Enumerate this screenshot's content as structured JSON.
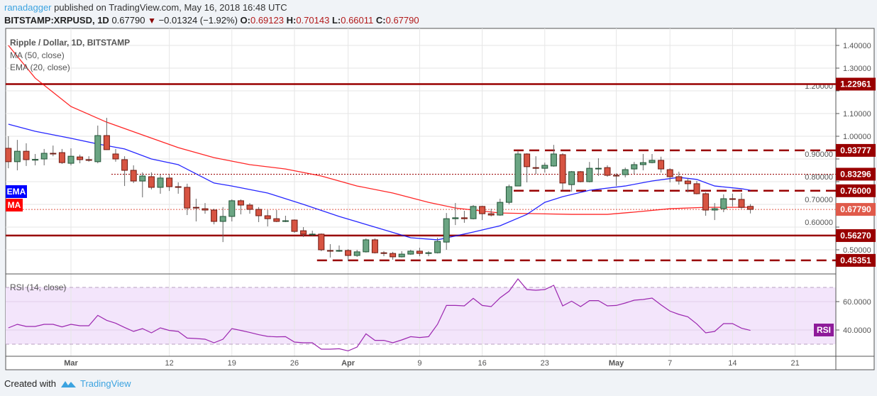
{
  "header": {
    "author": "ranadagger",
    "published_text": "published on TradingView.com, May 16, 2018 16:48 UTC",
    "symbol": "BITSTAMP:XRPUSD, 1D",
    "last": "0.67790",
    "change": "−0.01324 (−1.92%)",
    "direction_icon": "triangle-down-icon",
    "o_label": "O:",
    "o": "0.69123",
    "h_label": "H:",
    "h": "0.70143",
    "l_label": "L:",
    "l": "0.66011",
    "c_label": "C:",
    "c": "0.67790"
  },
  "legend": {
    "title": "Ripple / Dollar, 1D, BITSTAMP",
    "ma": "MA (50, close)",
    "ema": "EMA (20, close)",
    "ema_tag": "EMA",
    "ma_tag": "MA",
    "rsi": "RSI (14, close)",
    "rsi_tag": "RSI"
  },
  "footer": {
    "created_with": "Created with",
    "brand": "TradingView"
  },
  "colors": {
    "up": "#6ba583",
    "up_border": "#225437",
    "down": "#d75442",
    "down_border": "#6f1a12",
    "ma": "#ff0000",
    "ema": "#0000ff",
    "rsi": "#9c27b0",
    "level": "#990000",
    "last_price": "#e05a4a"
  },
  "chart_data": [
    {
      "type": "candlestick",
      "title": "Ripple / Dollar, 1D, BITSTAMP",
      "ylim": [
        0.4,
        1.45
      ],
      "y_ticks": [
        "1.40000",
        "1.30000",
        "1.20000",
        "1.10000",
        "1.00000",
        "0.90000",
        "0.80000",
        "0.70000",
        "0.60000",
        "0.50000"
      ],
      "x_ticks": [
        [
          "2018-03-01",
          "Mar"
        ],
        [
          "2018-03-12",
          "12"
        ],
        [
          "2018-03-19",
          "19"
        ],
        [
          "2018-03-26",
          "26"
        ],
        [
          "2018-04-01",
          "Apr"
        ],
        [
          "2018-04-09",
          "9"
        ],
        [
          "2018-04-16",
          "16"
        ],
        [
          "2018-04-23",
          "23"
        ],
        [
          "2018-05-01",
          "May"
        ],
        [
          "2018-05-07",
          "7"
        ],
        [
          "2018-05-14",
          "14"
        ],
        [
          "2018-05-21",
          "21"
        ]
      ],
      "grid": true,
      "levels": [
        {
          "value": 1.22961,
          "label": "1.22961",
          "style": "solid",
          "from": "2018-02-22"
        },
        {
          "value": 0.93777,
          "label": "0.93777",
          "style": "dashed",
          "from": "2018-04-20"
        },
        {
          "value": 0.83296,
          "label": "0.83296",
          "style": "dotted",
          "from": "2018-03-06"
        },
        {
          "value": 0.76,
          "label": "0.76000",
          "style": "dashed",
          "from": "2018-04-20"
        },
        {
          "value": 0.5627,
          "label": "0.56270",
          "style": "solid",
          "from": "2018-02-22"
        },
        {
          "value": 0.45351,
          "label": "0.45351",
          "style": "dashed",
          "from": "2018-03-29"
        }
      ],
      "last_price": {
        "value": 0.6779,
        "label": "0.67790"
      },
      "candles_columns": [
        "date",
        "open",
        "high",
        "low",
        "close"
      ],
      "candles": [
        [
          "2018-02-22",
          0.947,
          1.0,
          0.859,
          0.888
        ],
        [
          "2018-02-23",
          0.888,
          0.984,
          0.85,
          0.934
        ],
        [
          "2018-02-24",
          0.934,
          0.969,
          0.869,
          0.897
        ],
        [
          "2018-02-25",
          0.895,
          0.922,
          0.872,
          0.898
        ],
        [
          "2018-02-26",
          0.9,
          0.944,
          0.872,
          0.925
        ],
        [
          "2018-02-27",
          0.925,
          0.959,
          0.912,
          0.922
        ],
        [
          "2018-02-28",
          0.928,
          0.944,
          0.878,
          0.884
        ],
        [
          "2018-03-01",
          0.881,
          0.947,
          0.872,
          0.912
        ],
        [
          "2018-03-02",
          0.909,
          0.919,
          0.881,
          0.897
        ],
        [
          "2018-03-03",
          0.897,
          0.912,
          0.888,
          0.894
        ],
        [
          "2018-03-04",
          0.888,
          1.047,
          0.881,
          1.003
        ],
        [
          "2018-03-05",
          1.003,
          1.081,
          0.94,
          0.941
        ],
        [
          "2018-03-06",
          0.922,
          0.944,
          0.888,
          0.9
        ],
        [
          "2018-03-07",
          0.897,
          0.912,
          0.781,
          0.85
        ],
        [
          "2018-03-08",
          0.85,
          0.872,
          0.794,
          0.803
        ],
        [
          "2018-03-09",
          0.803,
          0.841,
          0.731,
          0.825
        ],
        [
          "2018-03-10",
          0.822,
          0.841,
          0.766,
          0.775
        ],
        [
          "2018-03-11",
          0.775,
          0.831,
          0.747,
          0.816
        ],
        [
          "2018-03-12",
          0.816,
          0.831,
          0.759,
          0.778
        ],
        [
          "2018-03-13",
          0.778,
          0.797,
          0.747,
          0.775
        ],
        [
          "2018-03-14",
          0.775,
          0.791,
          0.653,
          0.684
        ],
        [
          "2018-03-15",
          0.687,
          0.725,
          0.625,
          0.684
        ],
        [
          "2018-03-16",
          0.681,
          0.706,
          0.659,
          0.675
        ],
        [
          "2018-03-17",
          0.675,
          0.681,
          0.612,
          0.625
        ],
        [
          "2018-03-18",
          0.625,
          0.688,
          0.534,
          0.647
        ],
        [
          "2018-03-19",
          0.647,
          0.722,
          0.625,
          0.716
        ],
        [
          "2018-03-20",
          0.716,
          0.722,
          0.656,
          0.697
        ],
        [
          "2018-03-21",
          0.697,
          0.706,
          0.659,
          0.678
        ],
        [
          "2018-03-22",
          0.678,
          0.688,
          0.622,
          0.65
        ],
        [
          "2018-03-23",
          0.65,
          0.675,
          0.603,
          0.637
        ],
        [
          "2018-03-24",
          0.637,
          0.675,
          0.622,
          0.625
        ],
        [
          "2018-03-25",
          0.625,
          0.65,
          0.622,
          0.628
        ],
        [
          "2018-03-26",
          0.631,
          0.634,
          0.575,
          0.581
        ],
        [
          "2018-03-27",
          0.584,
          0.6,
          0.556,
          0.569
        ],
        [
          "2018-03-28",
          0.566,
          0.584,
          0.562,
          0.569
        ],
        [
          "2018-03-29",
          0.569,
          0.572,
          0.494,
          0.5
        ],
        [
          "2018-03-30",
          0.497,
          0.525,
          0.466,
          0.494
        ],
        [
          "2018-03-31",
          0.494,
          0.519,
          0.491,
          0.497
        ],
        [
          "2018-04-01",
          0.497,
          0.503,
          0.45,
          0.475
        ],
        [
          "2018-04-02",
          0.475,
          0.5,
          0.469,
          0.491
        ],
        [
          "2018-04-03",
          0.491,
          0.55,
          0.488,
          0.544
        ],
        [
          "2018-04-04",
          0.544,
          0.55,
          0.484,
          0.487
        ],
        [
          "2018-04-05",
          0.487,
          0.494,
          0.472,
          0.484
        ],
        [
          "2018-04-06",
          0.484,
          0.491,
          0.456,
          0.469
        ],
        [
          "2018-04-07",
          0.469,
          0.494,
          0.466,
          0.481
        ],
        [
          "2018-04-08",
          0.481,
          0.5,
          0.478,
          0.494
        ],
        [
          "2018-04-09",
          0.494,
          0.509,
          0.472,
          0.484
        ],
        [
          "2018-04-10",
          0.484,
          0.494,
          0.472,
          0.487
        ],
        [
          "2018-04-11",
          0.487,
          0.553,
          0.484,
          0.537
        ],
        [
          "2018-04-12",
          0.534,
          0.662,
          0.5,
          0.637
        ],
        [
          "2018-04-13",
          0.637,
          0.706,
          0.609,
          0.641
        ],
        [
          "2018-04-14",
          0.641,
          0.672,
          0.619,
          0.637
        ],
        [
          "2018-04-15",
          0.637,
          0.697,
          0.634,
          0.691
        ],
        [
          "2018-04-16",
          0.691,
          0.694,
          0.631,
          0.659
        ],
        [
          "2018-04-17",
          0.659,
          0.681,
          0.647,
          0.653
        ],
        [
          "2018-04-18",
          0.653,
          0.725,
          0.65,
          0.709
        ],
        [
          "2018-04-19",
          0.709,
          0.787,
          0.7,
          0.778
        ],
        [
          "2018-04-20",
          0.781,
          0.937,
          0.78,
          0.922
        ],
        [
          "2018-04-21",
          0.922,
          0.925,
          0.797,
          0.866
        ],
        [
          "2018-04-22",
          0.862,
          0.912,
          0.834,
          0.859
        ],
        [
          "2018-04-23",
          0.859,
          0.884,
          0.84,
          0.872
        ],
        [
          "2018-04-24",
          0.869,
          0.962,
          0.866,
          0.922
        ],
        [
          "2018-04-25",
          0.919,
          0.925,
          0.762,
          0.794
        ],
        [
          "2018-04-26",
          0.787,
          0.847,
          0.756,
          0.844
        ],
        [
          "2018-04-27",
          0.844,
          0.847,
          0.797,
          0.8
        ],
        [
          "2018-04-28",
          0.8,
          0.887,
          0.797,
          0.859
        ],
        [
          "2018-04-29",
          0.856,
          0.903,
          0.825,
          0.859
        ],
        [
          "2018-04-30",
          0.862,
          0.872,
          0.822,
          0.828
        ],
        [
          "2018-05-01",
          0.828,
          0.837,
          0.781,
          0.825
        ],
        [
          "2018-05-02",
          0.831,
          0.862,
          0.819,
          0.853
        ],
        [
          "2018-05-03",
          0.856,
          0.887,
          0.834,
          0.875
        ],
        [
          "2018-05-04",
          0.875,
          0.922,
          0.85,
          0.884
        ],
        [
          "2018-05-05",
          0.884,
          0.922,
          0.881,
          0.894
        ],
        [
          "2018-05-06",
          0.894,
          0.91,
          0.84,
          0.856
        ],
        [
          "2018-05-07",
          0.853,
          0.859,
          0.797,
          0.822
        ],
        [
          "2018-05-08",
          0.822,
          0.844,
          0.787,
          0.803
        ],
        [
          "2018-05-09",
          0.803,
          0.816,
          0.753,
          0.791
        ],
        [
          "2018-05-10",
          0.791,
          0.803,
          0.744,
          0.747
        ],
        [
          "2018-05-11",
          0.747,
          0.753,
          0.65,
          0.675
        ],
        [
          "2018-05-12",
          0.675,
          0.706,
          0.631,
          0.681
        ],
        [
          "2018-05-13",
          0.681,
          0.744,
          0.666,
          0.725
        ],
        [
          "2018-05-14",
          0.725,
          0.747,
          0.691,
          0.722
        ],
        [
          "2018-05-15",
          0.722,
          0.75,
          0.681,
          0.687
        ],
        [
          "2018-05-16",
          0.69123,
          0.70143,
          0.66011,
          0.6779
        ]
      ],
      "ma50": [
        [
          "2018-02-22",
          1.4
        ],
        [
          "2018-02-25",
          1.256
        ],
        [
          "2018-03-01",
          1.131
        ],
        [
          "2018-03-05",
          1.062
        ],
        [
          "2018-03-09",
          1.006
        ],
        [
          "2018-03-13",
          0.95
        ],
        [
          "2018-03-17",
          0.906
        ],
        [
          "2018-03-21",
          0.875
        ],
        [
          "2018-03-25",
          0.856
        ],
        [
          "2018-03-29",
          0.825
        ],
        [
          "2018-04-02",
          0.781
        ],
        [
          "2018-04-06",
          0.75
        ],
        [
          "2018-04-10",
          0.709
        ],
        [
          "2018-04-13",
          0.684
        ],
        [
          "2018-04-18",
          0.662
        ],
        [
          "2018-04-22",
          0.659
        ],
        [
          "2018-04-26",
          0.656
        ],
        [
          "2018-04-30",
          0.656
        ],
        [
          "2018-05-03",
          0.666
        ],
        [
          "2018-05-07",
          0.681
        ],
        [
          "2018-05-11",
          0.687
        ],
        [
          "2018-05-16",
          0.687
        ]
      ],
      "ema20": [
        [
          "2018-02-22",
          1.053
        ],
        [
          "2018-02-25",
          1.022
        ],
        [
          "2018-03-01",
          0.991
        ],
        [
          "2018-03-04",
          0.966
        ],
        [
          "2018-03-07",
          0.944
        ],
        [
          "2018-03-10",
          0.9
        ],
        [
          "2018-03-13",
          0.875
        ],
        [
          "2018-03-17",
          0.794
        ],
        [
          "2018-03-19",
          0.781
        ],
        [
          "2018-03-23",
          0.75
        ],
        [
          "2018-03-27",
          0.7
        ],
        [
          "2018-03-31",
          0.647
        ],
        [
          "2018-04-04",
          0.6
        ],
        [
          "2018-04-08",
          0.553
        ],
        [
          "2018-04-11",
          0.544
        ],
        [
          "2018-04-15",
          0.578
        ],
        [
          "2018-04-18",
          0.606
        ],
        [
          "2018-04-21",
          0.656
        ],
        [
          "2018-04-23",
          0.709
        ],
        [
          "2018-04-25",
          0.734
        ],
        [
          "2018-04-28",
          0.762
        ],
        [
          "2018-05-02",
          0.781
        ],
        [
          "2018-05-05",
          0.803
        ],
        [
          "2018-05-08",
          0.819
        ],
        [
          "2018-05-10",
          0.81
        ],
        [
          "2018-05-12",
          0.781
        ],
        [
          "2018-05-15",
          0.769
        ],
        [
          "2018-05-16",
          0.762
        ]
      ]
    },
    {
      "type": "line",
      "title": "RSI (14, close)",
      "ylim": [
        22,
        80
      ],
      "y_ticks": [
        "60.0000",
        "40.0000"
      ],
      "band": [
        30,
        70
      ],
      "values": [
        41.5,
        44,
        42.5,
        42.5,
        44,
        44,
        42.2,
        44,
        43,
        43,
        50.3,
        46.8,
        44.8,
        41.8,
        39,
        41,
        38,
        41.5,
        39.7,
        39,
        34.3,
        34,
        33.5,
        31,
        33.5,
        41,
        39.7,
        38.3,
        36.7,
        35.5,
        35.2,
        35.3,
        31.5,
        31,
        31,
        26.5,
        26.5,
        26.8,
        25.3,
        28,
        37.3,
        32.7,
        32.7,
        31,
        33,
        35.3,
        34.7,
        35.3,
        44,
        57.3,
        57.3,
        57,
        62.3,
        57.3,
        56.5,
        62.7,
        67.3,
        76,
        68.5,
        68,
        68.5,
        71.5,
        57,
        60.3,
        56.5,
        60.7,
        60.7,
        57,
        57.3,
        59,
        61,
        61.5,
        62.5,
        57.7,
        53.3,
        51,
        49.3,
        44.3,
        38,
        39,
        44.5,
        44.5,
        41.3,
        39.7
      ]
    }
  ]
}
